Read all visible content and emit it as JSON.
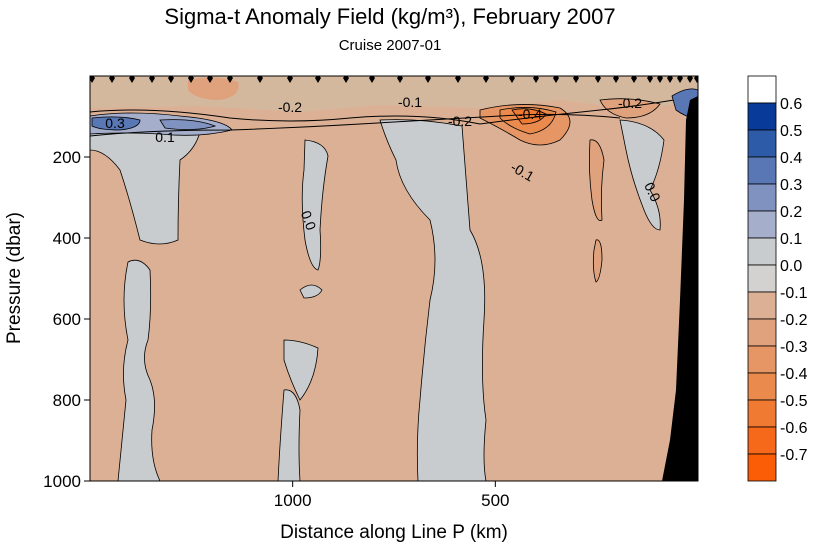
{
  "chart_data": {
    "type": "heatmap",
    "title": "Sigma-t Anomaly Field  (kg/m³),  February 2007",
    "subtitle": "Cruise 2007-01",
    "xlabel": "Distance along Line P  (km)",
    "ylabel": "Pressure  (dbar)",
    "x_axis": {
      "reversed": true,
      "ticks": [
        "1000",
        "500"
      ],
      "tick_values": [
        1000,
        500
      ],
      "range": [
        1500,
        0
      ]
    },
    "y_axis": {
      "reversed": true,
      "ticks": [
        "200",
        "400",
        "600",
        "800",
        "1000"
      ],
      "tick_values": [
        200,
        400,
        600,
        800,
        1000
      ],
      "range": [
        0,
        1000
      ]
    },
    "colorbar": {
      "labels": [
        "0.6",
        "0.5",
        "0.4",
        "0.3",
        "0.2",
        "0.1",
        "0.0",
        "-0.1",
        "-0.2",
        "-0.3",
        "-0.4",
        "-0.5",
        "-0.6",
        "-0.7"
      ],
      "colors": [
        "#ffffff",
        "#083b99",
        "#2e5ba8",
        "#5877b4",
        "#8092c0",
        "#a5aecb",
        "#c8cccf",
        "#d4d2d0",
        "#dcb095",
        "#e0a27d",
        "#e59664",
        "#ea8a4c",
        "#f07a32",
        "#f6681a",
        "#fb5c06"
      ]
    },
    "contour_labels": [
      "0.3",
      "0.1",
      "-0.2",
      "-0.1",
      "-0.2",
      "-0.4",
      "-0.1",
      "-0.2",
      "0.0",
      "0.0"
    ],
    "colors": {
      "positive_small": "#c8cccf",
      "negative_small": "#dcb095",
      "negative_mid": "#e0a27d",
      "strong_negative": "#f07a32",
      "positive_mid": "#8092c0",
      "positive_strong": "#2e5ba8",
      "land": "#000000"
    }
  }
}
